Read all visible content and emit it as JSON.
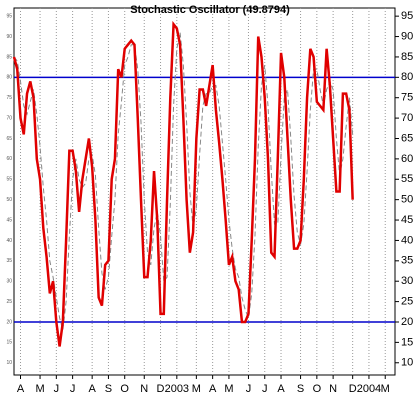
{
  "chart_data": {
    "type": "line",
    "title": "Stochastic Oscillator (49.8794)",
    "xlim": [
      0,
      117
    ],
    "xticks": [
      {
        "value": 2,
        "label": "A"
      },
      {
        "value": 8,
        "label": "M"
      },
      {
        "value": 13,
        "label": "J"
      },
      {
        "value": 18,
        "label": "J"
      },
      {
        "value": 24,
        "label": "A"
      },
      {
        "value": 29,
        "label": "S"
      },
      {
        "value": 34,
        "label": "O"
      },
      {
        "value": 40,
        "label": "N"
      },
      {
        "value": 45,
        "label": "D"
      },
      {
        "value": 50,
        "label": "2003"
      },
      {
        "value": 56,
        "label": "M"
      },
      {
        "value": 61,
        "label": "A"
      },
      {
        "value": 66,
        "label": "M"
      },
      {
        "value": 72,
        "label": "J"
      },
      {
        "value": 77,
        "label": "J"
      },
      {
        "value": 82,
        "label": "A"
      },
      {
        "value": 88,
        "label": "S"
      },
      {
        "value": 93,
        "label": "O"
      },
      {
        "value": 98,
        "label": "N"
      },
      {
        "value": 104,
        "label": "D"
      },
      {
        "value": 109,
        "label": "2004"
      },
      {
        "value": 114,
        "label": "M"
      }
    ],
    "ylim": [
      7,
      97
    ],
    "yticks": [
      10,
      15,
      20,
      25,
      30,
      35,
      40,
      45,
      50,
      55,
      60,
      65,
      70,
      75,
      80,
      85,
      90,
      95
    ],
    "reference_lines": [
      20,
      80
    ],
    "reference_color": "#0000cc",
    "grid": true,
    "series": [
      {
        "color": "#e00000",
        "values": [
          85,
          82,
          70,
          66,
          76,
          79,
          75,
          60,
          55,
          43,
          36,
          27,
          30,
          20,
          14,
          20,
          40,
          62,
          62,
          57,
          47,
          55,
          60,
          65,
          58,
          45,
          26,
          24,
          34,
          35,
          55,
          60,
          82,
          80,
          87,
          88,
          89,
          88,
          70,
          50,
          31,
          31,
          40,
          57,
          45,
          22,
          22,
          50,
          75,
          93,
          92,
          88,
          70,
          50,
          37,
          42,
          65,
          77,
          77,
          73,
          78,
          83,
          72,
          64,
          55,
          45,
          34,
          36,
          30,
          28,
          20,
          20,
          22,
          40,
          60,
          90,
          85,
          75,
          60,
          37,
          36,
          60,
          86,
          80,
          65,
          50,
          38,
          38,
          40,
          55,
          75,
          87,
          85,
          74,
          73,
          72,
          87,
          78,
          65,
          52,
          52,
          76,
          76,
          72,
          50
        ]
      },
      {
        "color": "#888888",
        "values": [
          85,
          84,
          79,
          73,
          71,
          74,
          77,
          71,
          63,
          53,
          45,
          35,
          31,
          26,
          21,
          18,
          25,
          41,
          55,
          60,
          55,
          53,
          54,
          60,
          61,
          56,
          43,
          32,
          28,
          31,
          41,
          50,
          66,
          74,
          83,
          85,
          88,
          88,
          82,
          69,
          50,
          37,
          34,
          43,
          47,
          41,
          30,
          31,
          49,
          73,
          87,
          91,
          83,
          69,
          52,
          43,
          48,
          61,
          73,
          76,
          76,
          78,
          78,
          73,
          64,
          55,
          45,
          38,
          33,
          31,
          26,
          23,
          21,
          27,
          41,
          63,
          78,
          83,
          73,
          57,
          44,
          44,
          61,
          75,
          77,
          65,
          51,
          42,
          39,
          44,
          57,
          72,
          82,
          82,
          77,
          73,
          77,
          79,
          77,
          65,
          56,
          60,
          68,
          75,
          66
        ]
      }
    ]
  }
}
